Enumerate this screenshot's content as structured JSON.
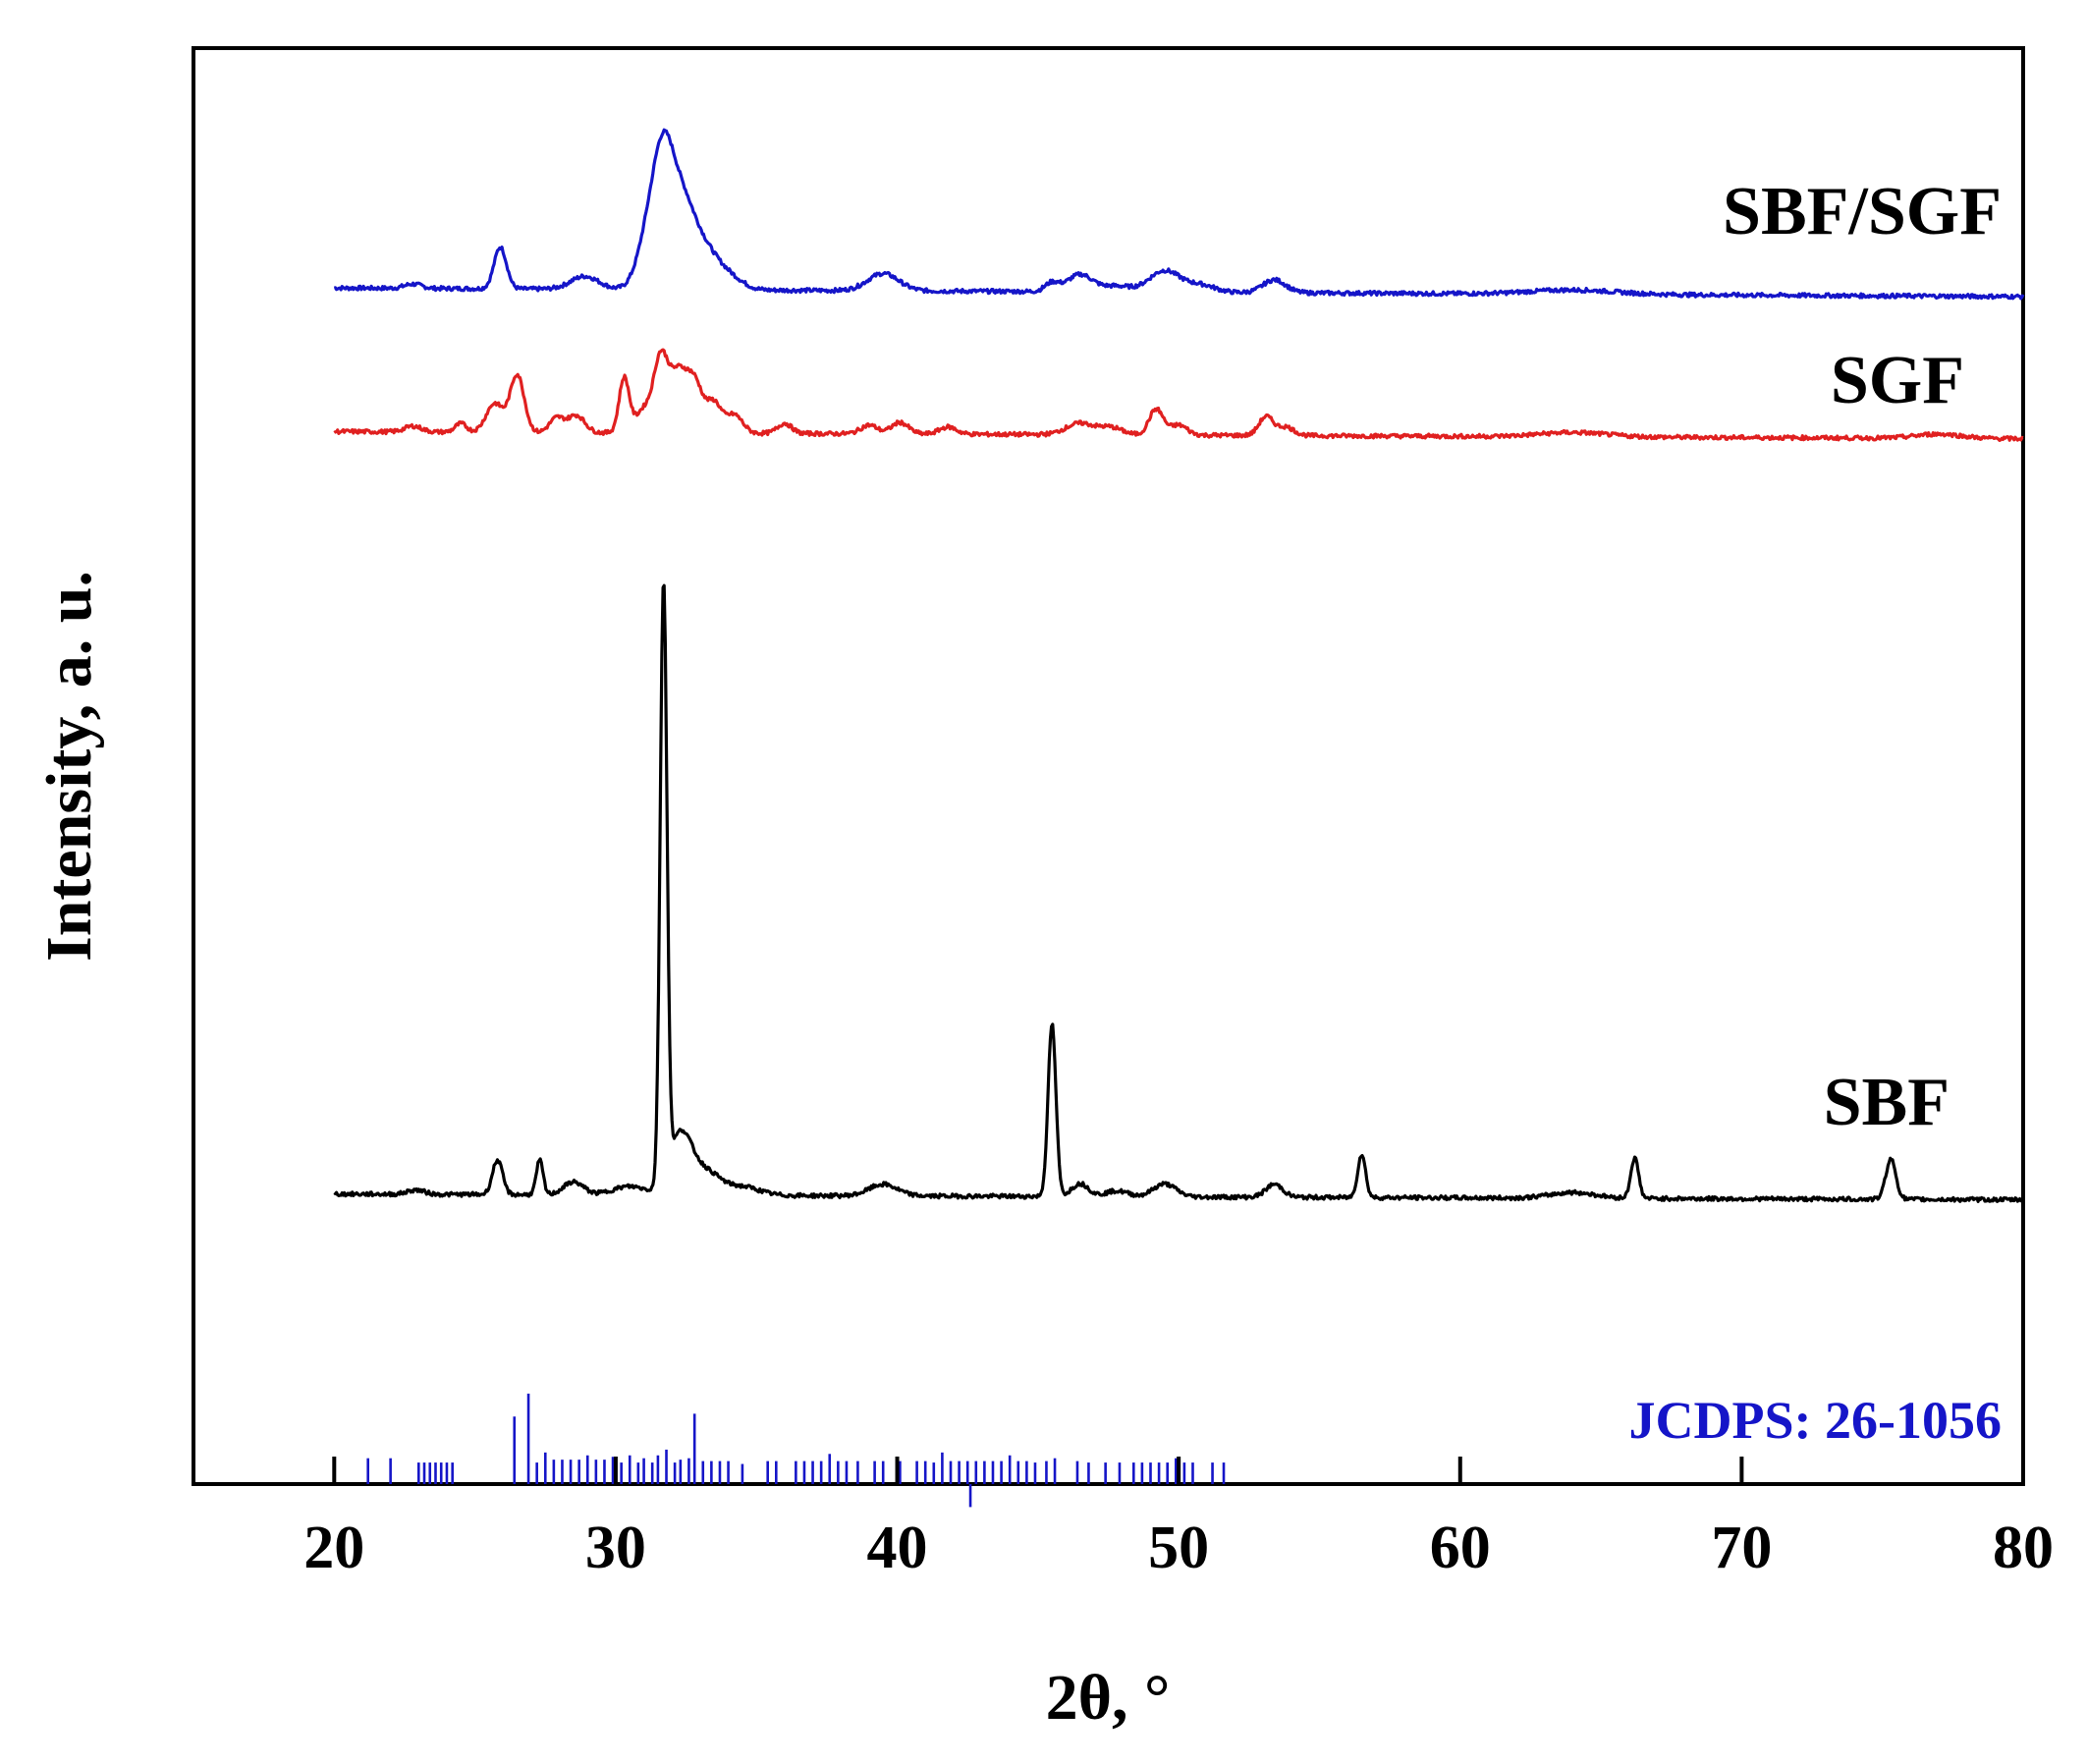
{
  "chart_data": {
    "type": "line",
    "title": "",
    "xlabel": "2θ, °",
    "ylabel": "Intensity, a. u.",
    "xlim": [
      15,
      80
    ],
    "xticks": [
      20,
      30,
      40,
      50,
      60,
      70,
      80
    ],
    "xtick_labels": [
      "20",
      "30",
      "40",
      "50",
      "60",
      "70",
      "80"
    ],
    "ylim": [
      0,
      100
    ],
    "y_ticks_shown": false,
    "grid": false,
    "legend": "none (series labelled inline on the right)",
    "series": [
      {
        "name": "SBF/SGF",
        "color": "#1515c8",
        "baseline": 83.3,
        "end_offset": -0.6,
        "peaks": [
          {
            "x": 22.8,
            "h": 0.3,
            "w": 0.3
          },
          {
            "x": 25.9,
            "h": 2.9,
            "w": 0.22
          },
          {
            "x": 28.9,
            "h": 0.9,
            "w": 0.5
          },
          {
            "x": 31.2,
            "h": 4.0,
            "w": 0.4
          },
          {
            "x": 31.7,
            "h": 6.8,
            "w": 0.35
          },
          {
            "x": 32.3,
            "h": 5.6,
            "w": 0.45
          },
          {
            "x": 33.1,
            "h": 2.6,
            "w": 0.5
          },
          {
            "x": 34.0,
            "h": 0.9,
            "w": 0.5
          },
          {
            "x": 39.5,
            "h": 1.2,
            "w": 0.55
          },
          {
            "x": 45.5,
            "h": 0.6,
            "w": 0.25
          },
          {
            "x": 46.5,
            "h": 1.2,
            "w": 0.45
          },
          {
            "x": 47.8,
            "h": 0.4,
            "w": 0.5
          },
          {
            "x": 49.5,
            "h": 1.5,
            "w": 0.55
          },
          {
            "x": 50.8,
            "h": 0.5,
            "w": 0.5
          },
          {
            "x": 53.4,
            "h": 0.9,
            "w": 0.4
          },
          {
            "x": 64.0,
            "h": 0.3,
            "w": 1.5
          }
        ]
      },
      {
        "name": "SGF",
        "color": "#e02020",
        "baseline": 73.3,
        "end_offset": -0.5,
        "peaks": [
          {
            "x": 22.8,
            "h": 0.4,
            "w": 0.3
          },
          {
            "x": 24.5,
            "h": 0.6,
            "w": 0.2
          },
          {
            "x": 25.7,
            "h": 2.0,
            "w": 0.3
          },
          {
            "x": 26.5,
            "h": 4.0,
            "w": 0.25
          },
          {
            "x": 27.9,
            "h": 1.0,
            "w": 0.25
          },
          {
            "x": 28.6,
            "h": 1.2,
            "w": 0.3
          },
          {
            "x": 30.3,
            "h": 3.8,
            "w": 0.18
          },
          {
            "x": 31.0,
            "h": 1.6,
            "w": 0.3
          },
          {
            "x": 31.6,
            "h": 5.0,
            "w": 0.25
          },
          {
            "x": 32.2,
            "h": 3.9,
            "w": 0.3
          },
          {
            "x": 32.8,
            "h": 3.5,
            "w": 0.3
          },
          {
            "x": 33.5,
            "h": 2.0,
            "w": 0.25
          },
          {
            "x": 34.2,
            "h": 1.3,
            "w": 0.3
          },
          {
            "x": 36.0,
            "h": 0.7,
            "w": 0.25
          },
          {
            "x": 39.0,
            "h": 0.6,
            "w": 0.3
          },
          {
            "x": 40.1,
            "h": 0.8,
            "w": 0.3
          },
          {
            "x": 41.8,
            "h": 0.5,
            "w": 0.3
          },
          {
            "x": 46.5,
            "h": 0.8,
            "w": 0.5
          },
          {
            "x": 47.6,
            "h": 0.5,
            "w": 0.4
          },
          {
            "x": 49.2,
            "h": 1.8,
            "w": 0.25
          },
          {
            "x": 50.0,
            "h": 0.7,
            "w": 0.3
          },
          {
            "x": 53.1,
            "h": 1.3,
            "w": 0.25
          },
          {
            "x": 53.8,
            "h": 0.6,
            "w": 0.3
          },
          {
            "x": 64.0,
            "h": 0.3,
            "w": 1.2
          },
          {
            "x": 77.0,
            "h": 0.3,
            "w": 0.8
          }
        ]
      },
      {
        "name": "SBF",
        "color": "#000000",
        "baseline": 20.2,
        "end_offset": -0.4,
        "peaks": [
          {
            "x": 22.9,
            "h": 0.3,
            "w": 0.3
          },
          {
            "x": 25.8,
            "h": 2.4,
            "w": 0.18
          },
          {
            "x": 27.3,
            "h": 2.4,
            "w": 0.12
          },
          {
            "x": 28.5,
            "h": 0.9,
            "w": 0.35
          },
          {
            "x": 30.5,
            "h": 0.6,
            "w": 0.6
          },
          {
            "x": 31.7,
            "h": 41.5,
            "w": 0.12
          },
          {
            "x": 32.3,
            "h": 4.2,
            "w": 0.4
          },
          {
            "x": 33.2,
            "h": 1.6,
            "w": 0.5
          },
          {
            "x": 34.5,
            "h": 0.6,
            "w": 0.6
          },
          {
            "x": 39.5,
            "h": 0.8,
            "w": 0.5
          },
          {
            "x": 45.5,
            "h": 12.0,
            "w": 0.14
          },
          {
            "x": 46.5,
            "h": 0.9,
            "w": 0.3
          },
          {
            "x": 47.8,
            "h": 0.4,
            "w": 0.4
          },
          {
            "x": 49.5,
            "h": 0.9,
            "w": 0.4
          },
          {
            "x": 53.4,
            "h": 0.9,
            "w": 0.3
          },
          {
            "x": 56.5,
            "h": 3.0,
            "w": 0.14
          },
          {
            "x": 64.0,
            "h": 0.4,
            "w": 0.8
          },
          {
            "x": 66.2,
            "h": 2.8,
            "w": 0.14
          },
          {
            "x": 75.3,
            "h": 2.8,
            "w": 0.18
          }
        ]
      }
    ],
    "reference": {
      "name": "JCDPS: 26-1056",
      "color": "#1515c8",
      "sticks": [
        [
          20.0,
          1.8
        ],
        [
          21.2,
          1.8
        ],
        [
          22.0,
          1.8
        ],
        [
          23.0,
          1.5
        ],
        [
          23.2,
          1.5
        ],
        [
          23.4,
          1.5
        ],
        [
          23.6,
          1.5
        ],
        [
          23.8,
          1.5
        ],
        [
          24.0,
          1.5
        ],
        [
          24.2,
          1.5
        ],
        [
          26.4,
          4.7
        ],
        [
          26.9,
          6.3
        ],
        [
          27.2,
          1.5
        ],
        [
          27.5,
          2.2
        ],
        [
          27.8,
          1.7
        ],
        [
          28.1,
          1.7
        ],
        [
          28.4,
          1.7
        ],
        [
          28.7,
          1.7
        ],
        [
          29.0,
          2.0
        ],
        [
          29.3,
          1.7
        ],
        [
          29.6,
          1.7
        ],
        [
          29.9,
          1.9
        ],
        [
          30.2,
          1.5
        ],
        [
          30.5,
          2.0
        ],
        [
          30.8,
          1.5
        ],
        [
          31.0,
          1.8
        ],
        [
          31.3,
          1.5
        ],
        [
          31.5,
          2.0
        ],
        [
          31.8,
          2.4
        ],
        [
          32.1,
          1.5
        ],
        [
          32.3,
          1.7
        ],
        [
          32.6,
          1.8
        ],
        [
          32.8,
          4.9
        ],
        [
          33.1,
          1.6
        ],
        [
          33.4,
          1.6
        ],
        [
          33.7,
          1.6
        ],
        [
          34.0,
          1.6
        ],
        [
          34.5,
          1.4
        ],
        [
          35.4,
          1.6
        ],
        [
          35.7,
          1.6
        ],
        [
          36.4,
          1.6
        ],
        [
          36.7,
          1.6
        ],
        [
          37.0,
          1.6
        ],
        [
          37.3,
          1.6
        ],
        [
          37.6,
          2.1
        ],
        [
          37.9,
          1.6
        ],
        [
          38.2,
          1.6
        ],
        [
          38.6,
          1.6
        ],
        [
          39.2,
          1.6
        ],
        [
          39.5,
          1.6
        ],
        [
          40.1,
          1.6
        ],
        [
          40.7,
          1.6
        ],
        [
          41.0,
          1.6
        ],
        [
          41.3,
          1.5
        ],
        [
          41.6,
          2.2
        ],
        [
          41.9,
          1.6
        ],
        [
          42.2,
          1.6
        ],
        [
          42.5,
          1.6
        ],
        [
          42.6,
          -1.6
        ],
        [
          42.8,
          1.6
        ],
        [
          43.1,
          1.6
        ],
        [
          43.4,
          1.6
        ],
        [
          43.7,
          1.6
        ],
        [
          44.0,
          2.0
        ],
        [
          44.3,
          1.6
        ],
        [
          44.6,
          1.6
        ],
        [
          44.9,
          1.5
        ],
        [
          45.3,
          1.6
        ],
        [
          45.6,
          1.8
        ],
        [
          46.4,
          1.6
        ],
        [
          46.8,
          1.5
        ],
        [
          47.4,
          1.5
        ],
        [
          47.9,
          1.5
        ],
        [
          48.4,
          1.5
        ],
        [
          48.7,
          1.5
        ],
        [
          49.0,
          1.5
        ],
        [
          49.3,
          1.5
        ],
        [
          49.6,
          1.5
        ],
        [
          49.9,
          1.8
        ],
        [
          50.2,
          1.5
        ],
        [
          50.5,
          1.5
        ],
        [
          51.2,
          1.5
        ],
        [
          51.6,
          1.5
        ]
      ]
    },
    "annotations": [
      "SBF/SGF",
      "SGF",
      "SBF",
      "JCDPS: 26-1056"
    ]
  }
}
